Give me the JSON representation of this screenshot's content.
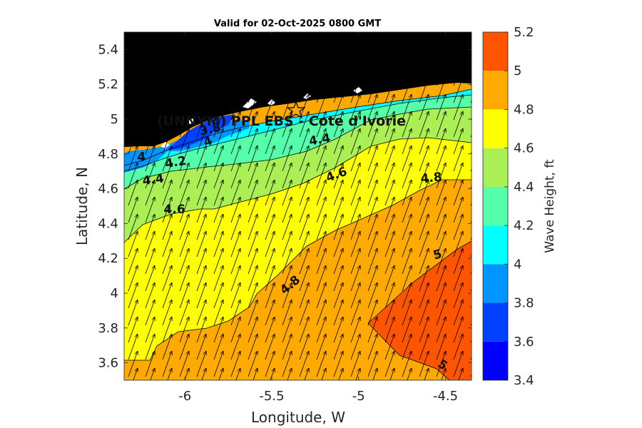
{
  "chart_data": {
    "type": "filled-contour",
    "title": "Valid for 02-Oct-2025 0800 GMT",
    "xlabel": "Longitude, W",
    "ylabel": "Latitude, N",
    "colorbar_label": "Wave Height, ft",
    "xlim": [
      -6.35,
      -4.35
    ],
    "ylim": [
      3.5,
      5.5
    ],
    "x_ticks": [
      -6,
      -5.5,
      -5,
      -4.5
    ],
    "x_tick_labels": [
      "-6",
      "-5.5",
      "-5",
      "-4.5"
    ],
    "y_ticks": [
      3.6,
      3.8,
      4,
      4.2,
      4.4,
      4.6,
      4.8,
      5,
      5.2,
      5.4
    ],
    "y_tick_labels": [
      "3.6",
      "3.8",
      "4",
      "4.2",
      "4.4",
      "4.6",
      "4.8",
      "5",
      "5.2",
      "5.4"
    ],
    "colorbar_levels": [
      3.4,
      3.6,
      3.8,
      4,
      4.2,
      4.4,
      4.6,
      4.8,
      5,
      5.2
    ],
    "colorbar_tick_labels": [
      "3.4",
      "3.6",
      "3.8",
      "4",
      "4.2",
      "4.4",
      "4.6",
      "4.8",
      "5",
      "5.2"
    ],
    "colorbar_colors": [
      "#0000ff",
      "#0040ff",
      "#0095ff",
      "#00ffff",
      "#55ffaa",
      "#aaf055",
      "#ffff00",
      "#ffaa00",
      "#ff5500"
    ],
    "land_color": "#000000",
    "site": {
      "name": "(UNNYM) PPL EBS  - Cote d'Ivorie",
      "lon": -5.35,
      "lat": 5.06,
      "marker": "star"
    },
    "contour_labels": [
      {
        "text": "3.8",
        "lon": -5.85,
        "lat": 4.92,
        "angle": -12
      },
      {
        "text": "4",
        "lon": -6.25,
        "lat": 4.76,
        "angle": 0
      },
      {
        "text": "4",
        "lon": -5.86,
        "lat": 4.85,
        "angle": -20
      },
      {
        "text": "4.2",
        "lon": -6.05,
        "lat": 4.73,
        "angle": -10
      },
      {
        "text": "4.4",
        "lon": -6.18,
        "lat": 4.63,
        "angle": -8
      },
      {
        "text": "4.4",
        "lon": -5.22,
        "lat": 4.86,
        "angle": -10
      },
      {
        "text": "4.6",
        "lon": -6.06,
        "lat": 4.46,
        "angle": 0
      },
      {
        "text": "4.6",
        "lon": -5.12,
        "lat": 4.66,
        "angle": -20
      },
      {
        "text": "4.8",
        "lon": -4.58,
        "lat": 4.64,
        "angle": -5
      },
      {
        "text": "4.8",
        "lon": -5.38,
        "lat": 4.03,
        "angle": -40
      },
      {
        "text": "5",
        "lon": -4.54,
        "lat": 4.2,
        "angle": -15
      },
      {
        "text": "5",
        "lon": -4.53,
        "lat": 3.57,
        "angle": 35
      }
    ],
    "wave_direction": "from SSW toward NNE (arrows point up-right)"
  }
}
